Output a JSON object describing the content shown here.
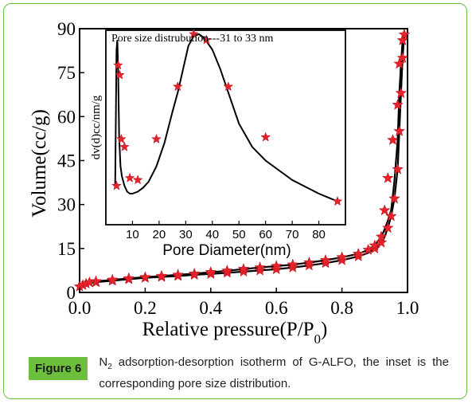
{
  "figure": {
    "label": "Figure 6",
    "caption_n": "N",
    "caption_sub": "2",
    "caption_rest": " adsorption-desorption isotherm of G-ALFO, the inset is the corresponding pore size distribution."
  },
  "colors": {
    "frame": "#6cbf3c",
    "line": "#000000",
    "marker": "#e8222a"
  },
  "chart_data": [
    {
      "type": "line",
      "title": "",
      "xlabel_main": "Relative pressure(P/P",
      "xlabel_sub": "0",
      "xlabel_close": ")",
      "ylabel": "Volume(cc/g)",
      "xlim": [
        0,
        1.0
      ],
      "ylim": [
        0,
        90
      ],
      "xticks": [
        "0.0",
        "0.2",
        "0.4",
        "0.6",
        "0.8",
        "1.0"
      ],
      "yticks": [
        "0",
        "15",
        "30",
        "45",
        "60",
        "75",
        "90"
      ],
      "series": [
        {
          "x": [
            0.0,
            0.01,
            0.02,
            0.03,
            0.05,
            0.1,
            0.15,
            0.2,
            0.25,
            0.3,
            0.35,
            0.4,
            0.45,
            0.5,
            0.55,
            0.6,
            0.65,
            0.7,
            0.75,
            0.8,
            0.85,
            0.88,
            0.9,
            0.92,
            0.93,
            0.94,
            0.95,
            0.96,
            0.97,
            0.975,
            0.98,
            0.985,
            0.99
          ],
          "values": [
            2.0,
            2.5,
            3.0,
            3.2,
            3.5,
            4.0,
            4.5,
            5.0,
            5.3,
            5.6,
            6.0,
            6.3,
            6.7,
            7.1,
            7.5,
            7.9,
            8.5,
            9.2,
            10.0,
            11.0,
            12.3,
            13.5,
            15.0,
            17.0,
            19.0,
            22.0,
            26.0,
            32.0,
            42.0,
            55.0,
            68.0,
            80.0,
            88.0
          ]
        },
        {
          "x": [
            0.99,
            0.985,
            0.98,
            0.975,
            0.97,
            0.96,
            0.955,
            0.95,
            0.94,
            0.93,
            0.92,
            0.9,
            0.88,
            0.85,
            0.8,
            0.75,
            0.7,
            0.65,
            0.6,
            0.55,
            0.5,
            0.45,
            0.4,
            0.35,
            0.3,
            0.25,
            0.2,
            0.15,
            0.1,
            0.05,
            0.03,
            0.02,
            0.01,
            0.0
          ],
          "values": [
            88.0,
            86.0,
            78.0,
            68.0,
            52.0,
            38.0,
            33.0,
            28.0,
            24.5,
            21.5,
            19.0,
            16.0,
            14.5,
            13.2,
            12.0,
            11.0,
            10.2,
            9.5,
            9.0,
            8.5,
            8.0,
            7.4,
            6.9,
            6.4,
            6.0,
            5.6,
            5.2,
            4.8,
            4.3,
            3.8,
            3.4,
            3.1,
            2.7,
            2.2
          ]
        }
      ],
      "markers_x": [
        0.0,
        0.01,
        0.02,
        0.05,
        0.1,
        0.15,
        0.2,
        0.25,
        0.3,
        0.35,
        0.4,
        0.45,
        0.5,
        0.55,
        0.6,
        0.65,
        0.7,
        0.75,
        0.8,
        0.85,
        0.9,
        0.92,
        0.94,
        0.95,
        0.96,
        0.97,
        0.975,
        0.98,
        0.985,
        0.99
      ],
      "markers_y": [
        2.0,
        2.5,
        3.0,
        3.5,
        4.0,
        4.5,
        5.0,
        5.3,
        5.6,
        6.0,
        6.3,
        6.7,
        7.1,
        7.5,
        7.9,
        8.5,
        9.2,
        10.0,
        11.0,
        12.3,
        15.0,
        17.0,
        22.0,
        26.0,
        32.0,
        42.0,
        55.0,
        68.0,
        80.0,
        88.0
      ],
      "markers2_x": [
        0.985,
        0.975,
        0.97,
        0.955,
        0.94,
        0.93,
        0.92,
        0.9,
        0.88,
        0.85,
        0.8,
        0.75,
        0.7,
        0.65,
        0.6,
        0.55,
        0.5,
        0.45,
        0.4,
        0.35,
        0.3,
        0.25,
        0.2,
        0.15,
        0.1,
        0.05,
        0.03
      ],
      "markers2_y": [
        86.0,
        78.0,
        64.0,
        52.0,
        39.0,
        28.0,
        19.0,
        16.0,
        14.5,
        13.2,
        12.0,
        11.0,
        10.2,
        9.5,
        9.0,
        8.5,
        8.0,
        7.4,
        6.9,
        6.4,
        6.0,
        5.6,
        5.2,
        4.8,
        4.3,
        3.8,
        3.4
      ]
    },
    {
      "type": "line",
      "title": "Pore size distrubution---31 to 33 nm",
      "xlabel": "Pore Diameter(nm)",
      "ylabel": "dv(d)cc/nm/g",
      "xlim": [
        0,
        90
      ],
      "ylim": [
        0,
        100
      ],
      "xticks": [
        "10",
        "20",
        "30",
        "40",
        "50",
        "60",
        "70",
        "80"
      ],
      "line_x": [
        3.5,
        4.0,
        4.3,
        4.6,
        5.0,
        5.5,
        6.0,
        7.0,
        8.0,
        9.0,
        10.0,
        12.0,
        14.0,
        16.0,
        19.0,
        22.0,
        25.0,
        27.0,
        29.0,
        31.0,
        33.0,
        35.0,
        37.0,
        40.0,
        43.0,
        46.0,
        50.0,
        55.0,
        60.0,
        70.0,
        80.0,
        87.0
      ],
      "line_y": [
        20,
        90,
        95,
        80,
        45,
        30,
        25,
        20,
        17,
        16,
        16,
        17,
        19,
        22,
        30,
        42,
        58,
        68,
        80,
        92,
        97,
        98,
        96,
        90,
        80,
        68,
        52,
        40,
        33,
        23,
        16,
        12
      ],
      "markers_x": [
        4.0,
        4.6,
        5.2,
        5.8,
        7.0,
        9.0,
        12.0,
        19.0,
        27.0,
        33.0,
        37.8,
        46.0,
        60.0,
        87.0
      ],
      "markers_y": [
        20,
        82,
        77,
        44,
        40,
        24,
        23,
        44,
        71,
        98,
        95,
        71,
        45,
        12
      ]
    }
  ]
}
